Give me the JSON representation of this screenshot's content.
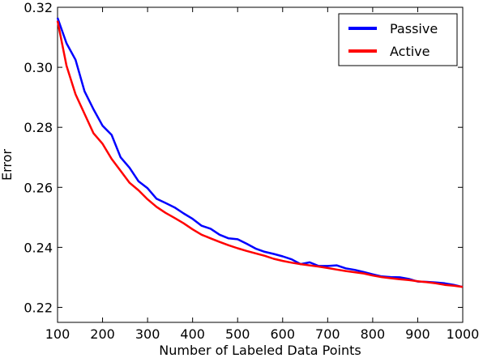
{
  "chart_data": {
    "type": "line",
    "title": "",
    "xlabel": "Number of Labeled Data Points",
    "ylabel": "Error",
    "xlim": [
      100,
      1000
    ],
    "ylim": [
      0.215,
      0.32
    ],
    "xticks": [
      100,
      200,
      300,
      400,
      500,
      600,
      700,
      800,
      900,
      1000
    ],
    "yticks": [
      0.22,
      0.24,
      0.26,
      0.28,
      0.3,
      0.32
    ],
    "grid": false,
    "legend": "top-right",
    "x": [
      100,
      120,
      140,
      160,
      180,
      200,
      220,
      240,
      260,
      280,
      300,
      320,
      340,
      360,
      380,
      400,
      420,
      440,
      460,
      480,
      500,
      520,
      540,
      560,
      580,
      600,
      620,
      640,
      660,
      680,
      700,
      720,
      740,
      760,
      780,
      800,
      820,
      840,
      860,
      880,
      900,
      920,
      940,
      960,
      980,
      1000
    ],
    "series": [
      {
        "name": "Passive",
        "color": "#0000ff",
        "values": [
          0.3165,
          0.308,
          0.3025,
          0.292,
          0.286,
          0.2805,
          0.2775,
          0.27,
          0.2665,
          0.262,
          0.2597,
          0.2562,
          0.2548,
          0.2533,
          0.2513,
          0.2495,
          0.2472,
          0.2462,
          0.2442,
          0.243,
          0.2427,
          0.2412,
          0.2396,
          0.2385,
          0.2378,
          0.237,
          0.236,
          0.2344,
          0.235,
          0.2338,
          0.2338,
          0.234,
          0.233,
          0.2325,
          0.2318,
          0.231,
          0.2303,
          0.2301,
          0.23,
          0.2295,
          0.2286,
          0.2285,
          0.2283,
          0.228,
          0.2275,
          0.2268
        ]
      },
      {
        "name": "Active",
        "color": "#ff0000",
        "values": [
          0.3155,
          0.3005,
          0.291,
          0.2845,
          0.278,
          0.2745,
          0.2695,
          0.2655,
          0.2615,
          0.259,
          0.256,
          0.2535,
          0.2515,
          0.2498,
          0.248,
          0.246,
          0.2442,
          0.243,
          0.2418,
          0.2407,
          0.2397,
          0.2388,
          0.238,
          0.2372,
          0.2362,
          0.2355,
          0.2349,
          0.2344,
          0.234,
          0.2336,
          0.2331,
          0.2326,
          0.2321,
          0.2317,
          0.2313,
          0.2306,
          0.2301,
          0.2297,
          0.2294,
          0.2291,
          0.2287,
          0.2284,
          0.228,
          0.2275,
          0.2272,
          0.2268
        ]
      }
    ]
  }
}
